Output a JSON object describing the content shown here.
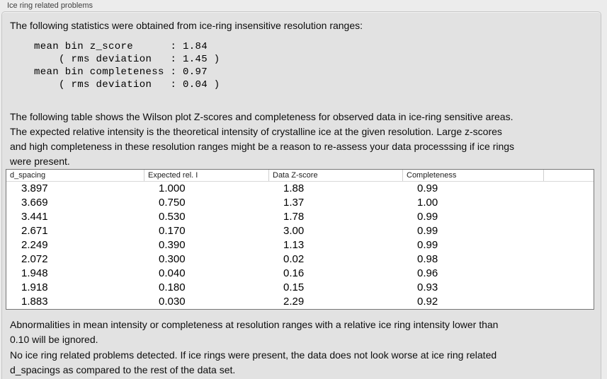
{
  "panel": {
    "title": "Ice ring related problems",
    "stats_intro": "The following statistics were obtained from ice-ring insensitive resolution ranges:",
    "stats_block": "mean bin z_score      : 1.84\n    ( rms deviation   : 1.45 )\nmean bin completeness : 0.97\n    ( rms deviation   : 0.04 )",
    "table_description": "The following table shows the Wilson plot Z-scores and completeness for observed data in ice-ring sensitive areas.\nThe expected relative intensity is the theoretical intensity of crystalline ice at the given resolution. Large z-scores\nand high completeness in these resolution ranges might be a reason to re-assess your data processsing if ice rings\nwere present.",
    "ignore_note": "Abnormalities in mean intensity or completeness at resolution ranges with a relative ice ring intensity lower than\n0.10 will be ignored.",
    "conclusion": "No ice ring related problems detected. If ice rings were present, the data does not look worse at ice ring related\nd_spacings as compared to the rest of the data set."
  },
  "stats": {
    "mean_bin_z_score": "1.84",
    "z_score_rms_deviation": "1.45",
    "mean_bin_completeness": "0.97",
    "completeness_rms_deviation": "0.04"
  },
  "table": {
    "columns": [
      "d_spacing",
      "Expected rel. I",
      "Data Z-score",
      "Completeness",
      ""
    ],
    "rows": [
      [
        "3.897",
        "1.000",
        "1.88",
        "0.99"
      ],
      [
        "3.669",
        "0.750",
        "1.37",
        "1.00"
      ],
      [
        "3.441",
        "0.530",
        "1.78",
        "0.99"
      ],
      [
        "2.671",
        "0.170",
        "3.00",
        "0.99"
      ],
      [
        "2.249",
        "0.390",
        "1.13",
        "0.99"
      ],
      [
        "2.072",
        "0.300",
        "0.02",
        "0.98"
      ],
      [
        "1.948",
        "0.040",
        "0.16",
        "0.96"
      ],
      [
        "1.918",
        "0.180",
        "0.15",
        "0.93"
      ],
      [
        "1.883",
        "0.030",
        "2.29",
        "0.92"
      ]
    ]
  },
  "colors": {
    "window_bg": "#ececec",
    "groupbox_bg": "#e2e2e2",
    "groupbox_border": "#c6c6c6",
    "table_bg": "#ffffff",
    "table_border": "#777777",
    "text": "#0d0d0d"
  }
}
